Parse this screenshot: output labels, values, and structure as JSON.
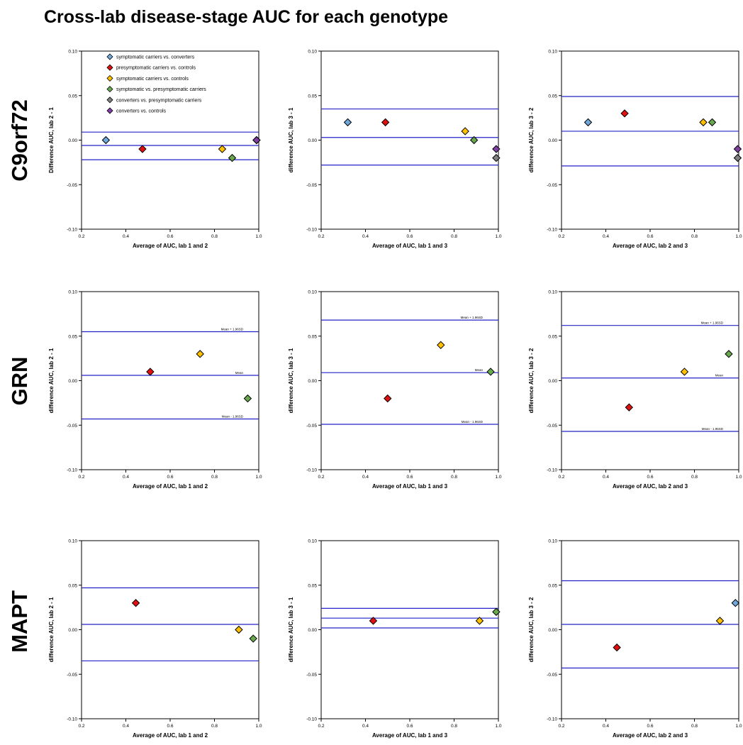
{
  "title": "Cross-lab disease-stage AUC for each genotype",
  "rows": [
    "C9orf72",
    "GRN",
    "MAPT"
  ],
  "colors": {
    "symptomatic carriers vs. converters": "#6fa8dc",
    "presymptomatic carriers vs. controls": "#e01010",
    "symptomatic carriers vs. controls": "#ffc000",
    "symptomatic vs. presymptomatic carriers": "#6aa84f",
    "converters vs. presymptomatic carriers": "#808080",
    "converters vs. controls": "#7e3fa0"
  },
  "legend": [
    "symptomatic carriers vs. converters",
    "presymptomatic carriers vs. controls",
    "symptomatic carriers vs. controls",
    "symptomatic vs. presymptomatic carriers",
    "converters vs. presymptomatic carriers",
    "converters vs. controls"
  ],
  "line_color": "#2323c8",
  "chart_data": [
    {
      "type": "scatter",
      "row": "C9orf72",
      "xlabel": "Average of AUC, lab 1 and 2",
      "ylabel": "Difference AUC, lab 2 - 1",
      "xlim": [
        0.2,
        1.0
      ],
      "ylim": [
        -0.1,
        0.1
      ],
      "xticks": [
        "0.2",
        "0.4",
        "0.6",
        "0.8",
        "1.0"
      ],
      "yticks": [
        "-0.10",
        "-0.05",
        "0.00",
        "0.05",
        "0.10"
      ],
      "lines": {
        "upper": 0.009,
        "mean": -0.006,
        "lower": -0.022
      },
      "line_labels": {},
      "points": [
        {
          "series": "symptomatic carriers vs. converters",
          "x": 0.31,
          "y": 0.0
        },
        {
          "series": "presymptomatic carriers vs. controls",
          "x": 0.475,
          "y": -0.01
        },
        {
          "series": "symptomatic carriers vs. controls",
          "x": 0.835,
          "y": -0.01
        },
        {
          "series": "symptomatic vs. presymptomatic carriers",
          "x": 0.88,
          "y": -0.02
        },
        {
          "series": "converters vs. presymptomatic carriers",
          "x": 0.99,
          "y": 0.0
        },
        {
          "series": "converters vs. controls",
          "x": 0.99,
          "y": 0.0
        }
      ]
    },
    {
      "type": "scatter",
      "row": "C9orf72",
      "xlabel": "Average of AUC, lab 1 and 3",
      "ylabel": "difference AUC, lab 3 - 1",
      "xlim": [
        0.2,
        1.0
      ],
      "ylim": [
        -0.1,
        0.1
      ],
      "xticks": [
        "0.2",
        "0.4",
        "0.6",
        "0.8",
        "1.0"
      ],
      "yticks": [
        "-0.10",
        "-0.05",
        "0.00",
        "0.05",
        "0.10"
      ],
      "lines": {
        "upper": 0.035,
        "mean": 0.003,
        "lower": -0.028
      },
      "line_labels": {},
      "points": [
        {
          "series": "symptomatic carriers vs. converters",
          "x": 0.32,
          "y": 0.02
        },
        {
          "series": "presymptomatic carriers vs. controls",
          "x": 0.49,
          "y": 0.02
        },
        {
          "series": "symptomatic carriers vs. controls",
          "x": 0.85,
          "y": 0.01
        },
        {
          "series": "symptomatic vs. presymptomatic carriers",
          "x": 0.89,
          "y": 0.0
        },
        {
          "series": "converters vs. controls",
          "x": 0.99,
          "y": -0.01
        },
        {
          "series": "converters vs. presymptomatic carriers",
          "x": 0.99,
          "y": -0.02
        }
      ]
    },
    {
      "type": "scatter",
      "row": "C9orf72",
      "xlabel": "Average of AUC, lab 2 and 3",
      "ylabel": "difference AUC, lab 3 - 2",
      "xlim": [
        0.2,
        1.0
      ],
      "ylim": [
        -0.1,
        0.1
      ],
      "xticks": [
        "0.2",
        "0.4",
        "0.6",
        "0.8",
        "1.0"
      ],
      "yticks": [
        "-0.10",
        "-0.05",
        "0.00",
        "0.05",
        "0.10"
      ],
      "lines": {
        "upper": 0.049,
        "mean": 0.01,
        "lower": -0.029
      },
      "line_labels": {},
      "points": [
        {
          "series": "symptomatic carriers vs. converters",
          "x": 0.32,
          "y": 0.02
        },
        {
          "series": "presymptomatic carriers vs. controls",
          "x": 0.485,
          "y": 0.03
        },
        {
          "series": "symptomatic carriers vs. controls",
          "x": 0.84,
          "y": 0.02
        },
        {
          "series": "symptomatic vs. presymptomatic carriers",
          "x": 0.88,
          "y": 0.02
        },
        {
          "series": "converters vs. controls",
          "x": 0.995,
          "y": -0.01
        },
        {
          "series": "converters vs. presymptomatic carriers",
          "x": 0.995,
          "y": -0.02
        }
      ]
    },
    {
      "type": "scatter",
      "row": "GRN",
      "xlabel": "Average of AUC, lab 1 and 2",
      "ylabel": "difference AUC, lab 2 - 1",
      "xlim": [
        0.2,
        1.0
      ],
      "ylim": [
        -0.1,
        0.1
      ],
      "xticks": [
        "0.2",
        "0.4",
        "0.6",
        "0.8",
        "1.0"
      ],
      "yticks": [
        "-0.10",
        "-0.05",
        "0.00",
        "0.05",
        "0.10"
      ],
      "lines": {
        "upper": 0.055,
        "mean": 0.006,
        "lower": -0.043
      },
      "line_labels": {
        "upper": "Mean + 1.96SD",
        "mean": "Mean",
        "lower": "Mean - 1.96SD"
      },
      "points": [
        {
          "series": "presymptomatic carriers vs. controls",
          "x": 0.51,
          "y": 0.01
        },
        {
          "series": "symptomatic carriers vs. controls",
          "x": 0.735,
          "y": 0.03
        },
        {
          "series": "symptomatic vs. presymptomatic carriers",
          "x": 0.95,
          "y": -0.02
        }
      ]
    },
    {
      "type": "scatter",
      "row": "GRN",
      "xlabel": "Average of AUC, lab 1 and 3",
      "ylabel": "difference AUC, lab 3 - 1",
      "xlim": [
        0.2,
        1.0
      ],
      "ylim": [
        -0.1,
        0.1
      ],
      "xticks": [
        "0.2",
        "0.4",
        "0.6",
        "0.8",
        "1.0"
      ],
      "yticks": [
        "-0.10",
        "-0.05",
        "0.00",
        "0.05",
        "0.10"
      ],
      "lines": {
        "upper": 0.068,
        "mean": 0.009,
        "lower": -0.049
      },
      "line_labels": {
        "upper": "Mean + 1.96SD",
        "mean": "Mean",
        "lower": "Mean - 1.96SD"
      },
      "points": [
        {
          "series": "presymptomatic carriers vs. controls",
          "x": 0.5,
          "y": -0.02
        },
        {
          "series": "symptomatic carriers vs. controls",
          "x": 0.74,
          "y": 0.04
        },
        {
          "series": "symptomatic vs. presymptomatic carriers",
          "x": 0.965,
          "y": 0.01
        }
      ]
    },
    {
      "type": "scatter",
      "row": "GRN",
      "xlabel": "Average of AUC, lab 2 and 3",
      "ylabel": "difference AUC, lab 3 - 2",
      "xlim": [
        0.2,
        1.0
      ],
      "ylim": [
        -0.1,
        0.1
      ],
      "xticks": [
        "0.2",
        "0.4",
        "0.6",
        "0.8",
        "1.0"
      ],
      "yticks": [
        "-0.10",
        "-0.05",
        "0.00",
        "0.05",
        "0.10"
      ],
      "lines": {
        "upper": 0.062,
        "mean": 0.003,
        "lower": -0.057
      },
      "line_labels": {
        "upper": "Mean + 1.96SD",
        "mean": "Mean",
        "lower": "Mean - 1.96SD"
      },
      "points": [
        {
          "series": "presymptomatic carriers vs. controls",
          "x": 0.505,
          "y": -0.03
        },
        {
          "series": "symptomatic carriers vs. controls",
          "x": 0.755,
          "y": 0.01
        },
        {
          "series": "symptomatic vs. presymptomatic carriers",
          "x": 0.955,
          "y": 0.03
        }
      ]
    },
    {
      "type": "scatter",
      "row": "MAPT",
      "xlabel": "Average of AUC, lab 1 and 2",
      "ylabel": "difference AUC, lab 2 - 1",
      "xlim": [
        0.2,
        1.0
      ],
      "ylim": [
        -0.1,
        0.1
      ],
      "xticks": [
        "0.2",
        "0.4",
        "0.6",
        "0.8",
        "1.0"
      ],
      "yticks": [
        "-0.10",
        "-0.05",
        "0.00",
        "0.05",
        "0.10"
      ],
      "lines": {
        "upper": 0.047,
        "mean": 0.006,
        "lower": -0.035
      },
      "line_labels": {},
      "points": [
        {
          "series": "presymptomatic carriers vs. controls",
          "x": 0.445,
          "y": 0.03
        },
        {
          "series": "symptomatic carriers vs. controls",
          "x": 0.91,
          "y": 0.0
        },
        {
          "series": "symptomatic vs. presymptomatic carriers",
          "x": 0.975,
          "y": -0.01
        }
      ]
    },
    {
      "type": "scatter",
      "row": "MAPT",
      "xlabel": "Average of AUC, lab 1 and 3",
      "ylabel": "difference AUC, lab 3 - 1",
      "xlim": [
        0.2,
        1.0
      ],
      "ylim": [
        -0.1,
        0.1
      ],
      "xticks": [
        "0.2",
        "0.4",
        "0.6",
        "0.8",
        "1.0"
      ],
      "yticks": [
        "-0.10",
        "-0.05",
        "0.00",
        "0.05",
        "0.10"
      ],
      "lines": {
        "upper": 0.024,
        "mean": 0.013,
        "lower": 0.002
      },
      "line_labels": {},
      "points": [
        {
          "series": "presymptomatic carriers vs. controls",
          "x": 0.435,
          "y": 0.01
        },
        {
          "series": "symptomatic carriers vs. controls",
          "x": 0.915,
          "y": 0.01
        },
        {
          "series": "symptomatic vs. presymptomatic carriers",
          "x": 0.99,
          "y": 0.02
        }
      ]
    },
    {
      "type": "scatter",
      "row": "MAPT",
      "xlabel": "Average of AUC, lab 2 and 3",
      "ylabel": "difference AUC, lab 3 - 2",
      "xlim": [
        0.2,
        1.0
      ],
      "ylim": [
        -0.1,
        0.1
      ],
      "xticks": [
        "0.2",
        "0.4",
        "0.6",
        "0.8",
        "1.0"
      ],
      "yticks": [
        "-0.10",
        "-0.05",
        "0.00",
        "0.05",
        "0.10"
      ],
      "lines": {
        "upper": 0.055,
        "mean": 0.006,
        "lower": -0.043
      },
      "line_labels": {},
      "points": [
        {
          "series": "presymptomatic carriers vs. controls",
          "x": 0.45,
          "y": -0.02
        },
        {
          "series": "symptomatic carriers vs. controls",
          "x": 0.915,
          "y": 0.01
        },
        {
          "series": "symptomatic carriers vs. converters",
          "x": 0.985,
          "y": 0.03
        }
      ]
    }
  ]
}
